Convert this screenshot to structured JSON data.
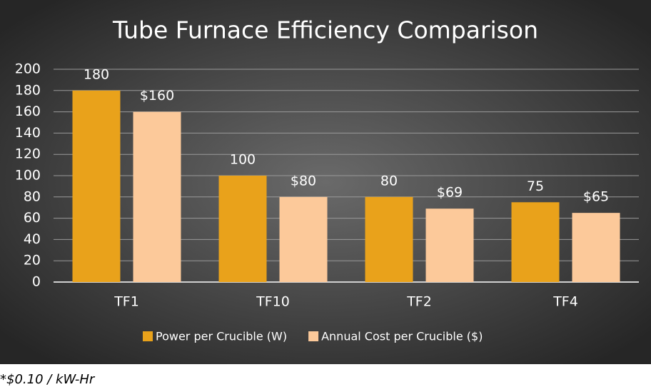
{
  "chart_data": {
    "type": "bar",
    "title": "Tube Furnace Efficiency Comparison",
    "categories": [
      "TF1",
      "TF10",
      "TF2",
      "TF4"
    ],
    "series": [
      {
        "name": "Power per Crucible (W)",
        "color": "#e9a21b",
        "values": [
          180,
          100,
          80,
          75
        ]
      },
      {
        "name": "Annual Cost per Crucible ($)",
        "color": "#fcc99a",
        "values": [
          160,
          80,
          69,
          65
        ],
        "value_labels": [
          "$160",
          "$80",
          "$69",
          "$65"
        ]
      }
    ],
    "ylim": [
      0,
      200
    ],
    "yticks": [
      0,
      20,
      40,
      60,
      80,
      100,
      120,
      140,
      160,
      180,
      200
    ],
    "grid": true,
    "legend": "bottom",
    "note": "*$0.10 / kW-Hr"
  }
}
